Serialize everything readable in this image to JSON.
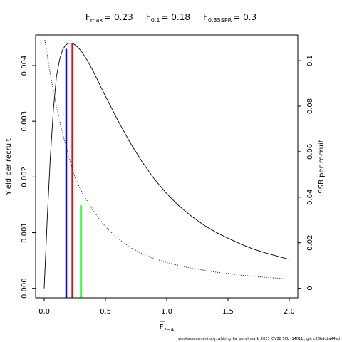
{
  "chart_data": {
    "type": "line",
    "title_parts": [
      {
        "main": "F",
        "sub": "max",
        "value": "= 0.23"
      },
      {
        "main": "F",
        "sub": "0.1",
        "value": "= 0.18"
      },
      {
        "main": "F",
        "sub": "0.35SPR",
        "value": "= 0.3"
      }
    ],
    "xlabel": {
      "main": "F",
      "sub": "2−4"
    },
    "ylabel_left": "Yield per recruit",
    "ylabel_right": "SSB per recruit",
    "xlim": [
      -0.07,
      2.07
    ],
    "ylim_left": [
      -0.00017,
      0.00455
    ],
    "ylim_right": [
      -0.0042,
      0.1113
    ],
    "x_ticks": [
      0,
      0.5,
      1.0,
      1.5,
      2.0
    ],
    "x_tick_labels": [
      "0.0",
      "0.5",
      "1.0",
      "1.5",
      "2.0"
    ],
    "y_left_ticks": [
      0.0,
      0.001,
      0.002,
      0.003,
      0.004
    ],
    "y_left_tick_labels": [
      "0.000",
      "0.001",
      "0.002",
      "0.003",
      "0.004"
    ],
    "y_right_ticks": [
      0,
      0.02,
      0.04,
      0.06,
      0.08,
      0.1
    ],
    "y_right_tick_labels": [
      "0",
      "0.02",
      "0.04",
      "0.06",
      "0.08",
      "0.1"
    ],
    "series": [
      {
        "style": "solid",
        "axis": "left",
        "x": [
          0,
          0.025,
          0.05,
          0.075,
          0.1,
          0.125,
          0.15,
          0.175,
          0.2,
          0.23,
          0.26,
          0.3,
          0.35,
          0.4,
          0.5,
          0.6,
          0.7,
          0.8,
          0.9,
          1.0,
          1.1,
          1.2,
          1.3,
          1.4,
          1.5,
          1.6,
          1.7,
          1.8,
          1.9,
          2.0
        ],
        "y": [
          0.0,
          0.00125,
          0.00235,
          0.0032,
          0.0038,
          0.0041,
          0.00428,
          0.00437,
          0.0044,
          0.0044,
          0.00436,
          0.00427,
          0.0041,
          0.0039,
          0.00345,
          0.00302,
          0.00262,
          0.00227,
          0.00196,
          0.0017,
          0.00148,
          0.0013,
          0.00114,
          0.00101,
          0.0009,
          0.0008,
          0.00071,
          0.00064,
          0.00058,
          0.00052
        ]
      },
      {
        "style": "dotted",
        "axis": "right",
        "x": [
          0,
          0.05,
          0.1,
          0.15,
          0.2,
          0.25,
          0.3,
          0.4,
          0.5,
          0.6,
          0.7,
          0.8,
          0.9,
          1.0,
          1.2,
          1.4,
          1.6,
          1.8,
          2.0
        ],
        "y": [
          0.111,
          0.094,
          0.08,
          0.068,
          0.058,
          0.049,
          0.043,
          0.034,
          0.027,
          0.022,
          0.018,
          0.0152,
          0.013,
          0.0113,
          0.0088,
          0.0071,
          0.0058,
          0.0048,
          0.0041
        ]
      }
    ],
    "reference_lines": [
      {
        "name": "F0.1",
        "x": 0.18,
        "y_bottom": -0.00017,
        "y_top": 0.0043,
        "color": "#0000ff"
      },
      {
        "name": "Fmax",
        "x": 0.23,
        "y_bottom": -0.00017,
        "y_top": 0.0044,
        "color": "#ff0000"
      },
      {
        "name": "F0.35SPR",
        "x": 0.3,
        "y_bottom": -0.00017,
        "y_top": 0.00149,
        "color": "#00ff00"
      }
    ],
    "footer": "stockassessment.org,  whiting_6a_benchmark_2021_OV38   SCL  r14011 ,  git: c28bdc2a44ad"
  }
}
